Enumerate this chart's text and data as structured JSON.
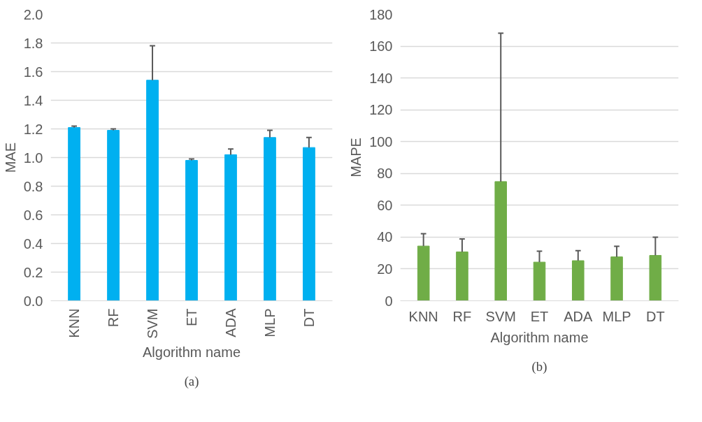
{
  "chart_data": [
    {
      "type": "bar",
      "xlabel": "Algorithm name",
      "ylabel": "MAE",
      "annotations": [
        "(a)"
      ],
      "categories": [
        "KNN",
        "RF",
        "SVM",
        "ET",
        "ADA",
        "MLP",
        "DT"
      ],
      "values": [
        1.21,
        1.19,
        1.54,
        0.98,
        1.02,
        1.14,
        1.07
      ],
      "errors": [
        [
          1.21,
          1.22
        ],
        [
          1.19,
          1.2
        ],
        [
          1.54,
          1.78
        ],
        [
          0.98,
          0.99
        ],
        [
          1.02,
          1.06
        ],
        [
          1.14,
          1.19
        ],
        [
          1.07,
          1.14
        ]
      ],
      "color": "#00b0f0",
      "ylim": [
        0,
        2.0
      ],
      "yticks": [
        {
          "value": 0,
          "label": "0.0"
        },
        {
          "value": 0.2,
          "label": "0.2"
        },
        {
          "value": 0.4,
          "label": "0.4"
        },
        {
          "value": 0.6,
          "label": "0.6"
        },
        {
          "value": 0.8,
          "label": "0.8"
        },
        {
          "value": 1.0,
          "label": "1.0"
        },
        {
          "value": 1.2,
          "label": "1.2"
        },
        {
          "value": 1.4,
          "label": "1.4"
        },
        {
          "value": 1.6,
          "label": "1.6"
        },
        {
          "value": 1.8,
          "label": "1.8"
        },
        {
          "value": 2.0,
          "label": "2.0"
        }
      ],
      "grid": "y"
    },
    {
      "type": "bar",
      "xlabel": "Algorithm name",
      "ylabel": "MAPE",
      "annotations": [
        "(b)"
      ],
      "categories": [
        "KNN",
        "RF",
        "SVM",
        "ET",
        "ADA",
        "MLP",
        "DT"
      ],
      "values": [
        34.4,
        30.7,
        74.9,
        24.3,
        25.2,
        27.6,
        28.5
      ],
      "errors": [
        [
          34.4,
          42.2
        ],
        [
          30.7,
          38.9
        ],
        [
          74.9,
          168.2
        ],
        [
          24.3,
          31.2
        ],
        [
          25.2,
          31.5
        ],
        [
          27.6,
          34.2
        ],
        [
          28.5,
          39.9
        ]
      ],
      "color": "#70ad47",
      "ylim": [
        0,
        180
      ],
      "yticks": [
        0,
        20,
        40,
        60,
        80,
        100,
        120,
        140,
        160,
        180
      ],
      "grid": "y"
    }
  ]
}
